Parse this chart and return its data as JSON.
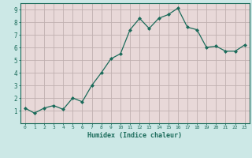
{
  "x": [
    0,
    1,
    2,
    3,
    4,
    5,
    6,
    7,
    8,
    9,
    10,
    11,
    12,
    13,
    14,
    15,
    16,
    17,
    18,
    19,
    20,
    21,
    22,
    23
  ],
  "y": [
    1.2,
    0.8,
    1.2,
    1.4,
    1.1,
    2.0,
    1.7,
    3.0,
    4.0,
    5.1,
    5.5,
    7.4,
    8.3,
    7.5,
    8.3,
    8.6,
    9.1,
    7.6,
    7.4,
    6.0,
    6.1,
    5.7,
    5.7,
    6.2
  ],
  "xlabel": "Humidex (Indice chaleur)",
  "line_color": "#1a6b5a",
  "marker_color": "#1a6b5a",
  "bg_color": "#cce8e6",
  "plot_bg_color": "#e8d8d8",
  "grid_color": "#c0b0b0",
  "axis_color": "#1a6b5a",
  "xlim": [
    -0.5,
    23.5
  ],
  "ylim": [
    0,
    9.5
  ],
  "yticks": [
    1,
    2,
    3,
    4,
    5,
    6,
    7,
    8,
    9
  ],
  "xticks": [
    0,
    1,
    2,
    3,
    4,
    5,
    6,
    7,
    8,
    9,
    10,
    11,
    12,
    13,
    14,
    15,
    16,
    17,
    18,
    19,
    20,
    21,
    22,
    23
  ]
}
